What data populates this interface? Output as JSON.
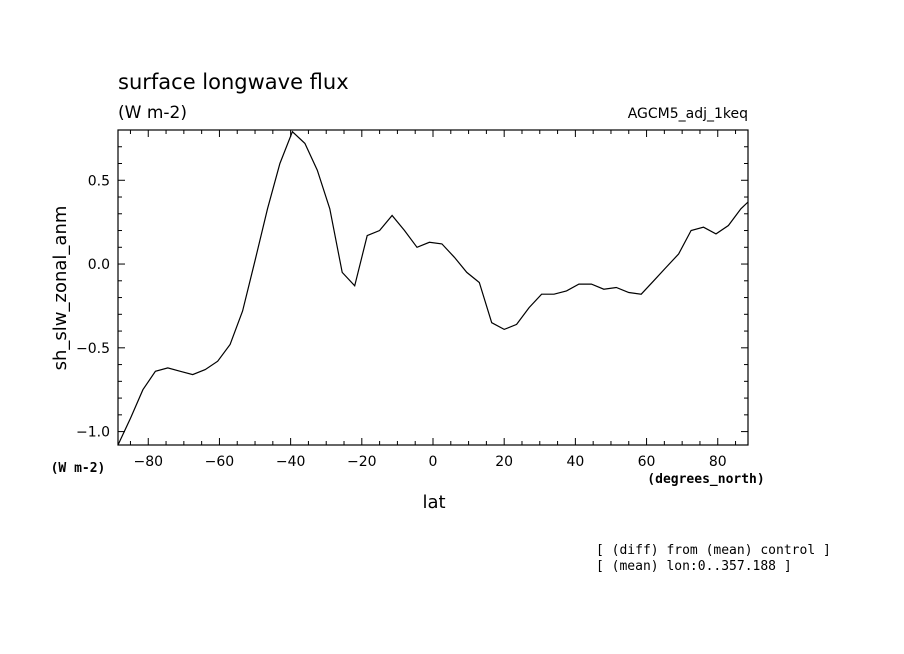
{
  "chart_data": {
    "type": "line",
    "title": "surface longwave flux",
    "subtitle": "(W m-2)",
    "experiment": "AGCM5_adj_1keq",
    "ylabel": "sh_slw_zonal_anm",
    "yunits": "(W m-2)",
    "xlabel": "lat",
    "xunits": "(degrees_north)",
    "notes": [
      "[ (diff) from (mean) control ]",
      "[ (mean) lon:0..357.188 ]"
    ],
    "xlim": [
      -88.5,
      88.5
    ],
    "ylim": [
      -1.08,
      0.8
    ],
    "x_ticks": [
      -80,
      -60,
      -40,
      -20,
      0,
      20,
      40,
      60,
      80
    ],
    "x_tick_labels": [
      "−80",
      "−60",
      "−40",
      "−20",
      "0",
      "20",
      "40",
      "60",
      "80"
    ],
    "y_ticks": [
      -1.0,
      -0.5,
      0.0,
      0.5
    ],
    "y_tick_labels": [
      "−1.0",
      "−0.5",
      "0.0",
      "0.5"
    ],
    "grid": false,
    "series": [
      {
        "x": [
          -88.5,
          -85,
          -81.5,
          -78,
          -74.5,
          -71,
          -67.5,
          -64,
          -60.5,
          -57,
          -53.5,
          -50,
          -46.5,
          -43,
          -39.5,
          -36,
          -32.5,
          -29,
          -25.5,
          -22,
          -18.5,
          -15,
          -11.5,
          -8,
          -4.5,
          -1,
          2.5,
          6,
          9.5,
          13,
          16.5,
          20,
          23.5,
          27,
          30.5,
          34,
          37.5,
          41,
          44.5,
          48,
          51.5,
          55,
          58.5,
          62,
          65.5,
          69,
          72.5,
          76,
          79.5,
          83,
          86.5,
          88.5
        ],
        "y": [
          -1.08,
          -0.92,
          -0.75,
          -0.64,
          -0.62,
          -0.64,
          -0.66,
          -0.63,
          -0.58,
          -0.48,
          -0.28,
          0.02,
          0.33,
          0.6,
          0.79,
          0.72,
          0.56,
          0.33,
          -0.05,
          -0.13,
          0.17,
          0.2,
          0.29,
          0.2,
          0.1,
          0.13,
          0.12,
          0.04,
          -0.05,
          -0.11,
          -0.35,
          -0.39,
          -0.36,
          -0.26,
          -0.18,
          -0.18,
          -0.16,
          -0.12,
          -0.12,
          -0.15,
          -0.14,
          -0.17,
          -0.18,
          -0.1,
          -0.02,
          0.06,
          0.2,
          0.22,
          0.18,
          0.23,
          0.33,
          0.37
        ]
      }
    ]
  }
}
